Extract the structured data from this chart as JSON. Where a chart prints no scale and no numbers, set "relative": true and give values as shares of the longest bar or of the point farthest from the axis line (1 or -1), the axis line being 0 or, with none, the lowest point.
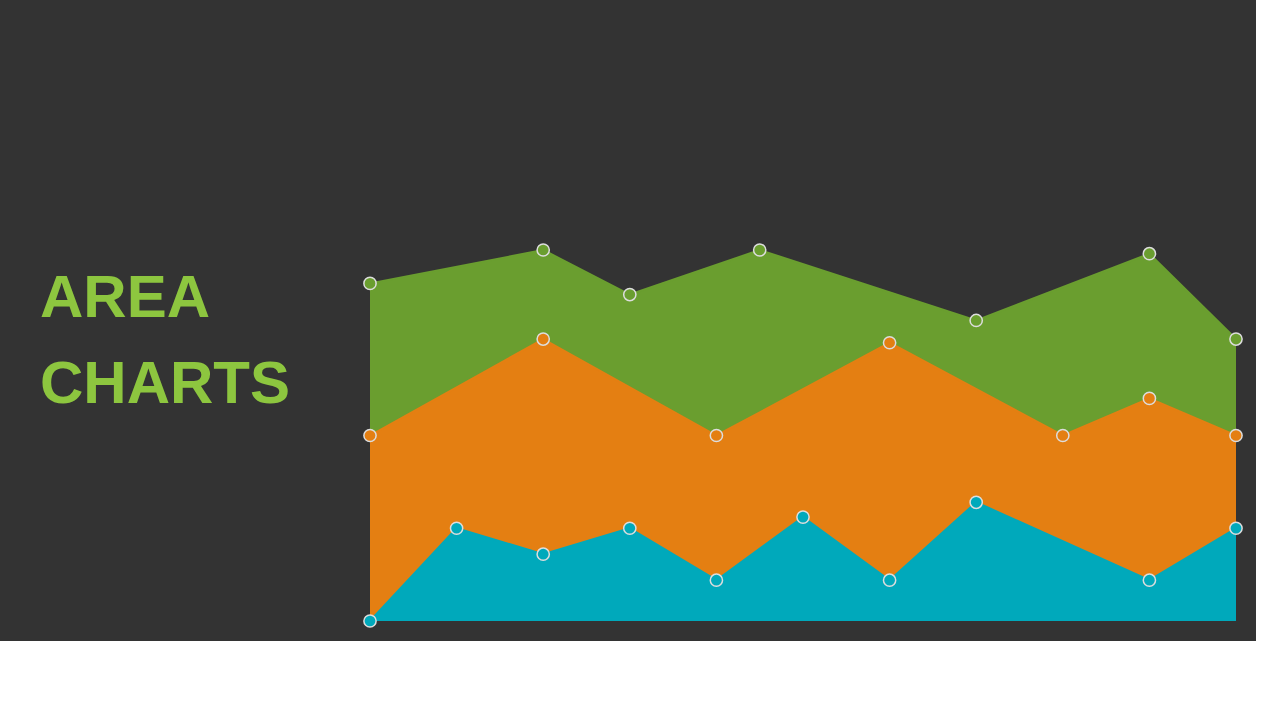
{
  "chart_data": {
    "type": "area",
    "title": "AREA CHARTS",
    "relative": true,
    "marker": "circle",
    "categories": [
      null,
      null,
      null,
      null,
      null,
      null,
      null,
      null,
      null,
      null,
      null,
      null,
      null,
      null,
      null,
      null,
      null,
      null,
      null,
      null,
      null
    ],
    "series": [
      {
        "color": "#6a9e2f",
        "values": [
          0.91,
          null,
          null,
          null,
          1.0,
          null,
          0.88,
          null,
          null,
          1.0,
          null,
          null,
          null,
          null,
          0.81,
          null,
          null,
          null,
          0.99,
          null,
          0.76
        ]
      },
      {
        "color": "#e47f12",
        "values": [
          0.5,
          null,
          null,
          null,
          0.76,
          null,
          null,
          null,
          0.5,
          null,
          null,
          null,
          0.75,
          null,
          null,
          null,
          0.5,
          null,
          0.6,
          null,
          0.5
        ]
      },
      {
        "color": "#00a9bb",
        "values": [
          0,
          null,
          0.25,
          null,
          0.18,
          null,
          0.25,
          null,
          0.11,
          null,
          0.28,
          null,
          0.11,
          null,
          0.32,
          null,
          null,
          null,
          0.11,
          null,
          0.25
        ]
      }
    ]
  }
}
